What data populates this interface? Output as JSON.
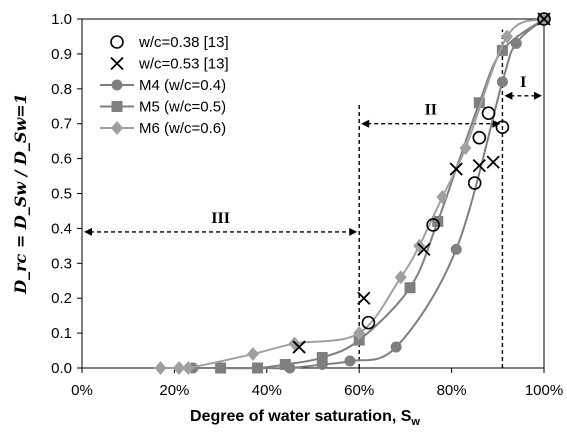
{
  "chart_data": {
    "type": "scatter",
    "xlabel": "Degree of water saturation, S",
    "xlabel_sub": "w",
    "ylabel": "D_rc = D_Sw / D_Sw=1",
    "xlim": [
      0,
      100
    ],
    "ylim": [
      0,
      1.0
    ],
    "x_ticks": [
      "0%",
      "20%",
      "40%",
      "60%",
      "80%",
      "100%"
    ],
    "x_tick_values": [
      0,
      20,
      40,
      60,
      80,
      100
    ],
    "y_ticks": [
      "0.0",
      "0.1",
      "0.2",
      "0.3",
      "0.4",
      "0.5",
      "0.6",
      "0.7",
      "0.8",
      "0.9",
      "1.0"
    ],
    "y_tick_values": [
      0,
      0.1,
      0.2,
      0.3,
      0.4,
      0.5,
      0.6,
      0.7,
      0.8,
      0.9,
      1.0
    ],
    "grid": false,
    "legend_position": "top-left",
    "series": [
      {
        "name": "w/c=0.38 [13]",
        "marker": "circle-open",
        "color": "#000000",
        "line": false,
        "x": [
          62,
          76,
          85,
          86,
          88,
          91,
          100
        ],
        "y": [
          0.13,
          0.41,
          0.53,
          0.66,
          0.73,
          0.69,
          1.0
        ]
      },
      {
        "name": "w/c=0.53 [13]",
        "marker": "x",
        "color": "#000000",
        "line": false,
        "x": [
          47,
          61,
          74,
          81,
          86,
          89,
          100
        ],
        "y": [
          0.06,
          0.2,
          0.34,
          0.57,
          0.58,
          0.59,
          1.0
        ]
      },
      {
        "name": "M4 (w/c=0.4)",
        "marker": "circle",
        "color": "#7f7f7f",
        "line": true,
        "x": [
          24,
          30,
          38,
          45,
          52,
          58,
          68,
          81,
          91,
          94,
          100
        ],
        "y": [
          0.0,
          0.0,
          0.0,
          0.0,
          0.01,
          0.02,
          0.06,
          0.34,
          0.82,
          0.93,
          1.0
        ]
      },
      {
        "name": "M5 (w/c=0.5)",
        "marker": "square",
        "color": "#7f7f7f",
        "line": true,
        "x": [
          30,
          38,
          44,
          52,
          60,
          71,
          77,
          86,
          91,
          100
        ],
        "y": [
          0.0,
          0.0,
          0.01,
          0.03,
          0.08,
          0.23,
          0.42,
          0.76,
          0.91,
          1.0
        ]
      },
      {
        "name": "M6 (w/c=0.6)",
        "marker": "diamond",
        "color": "#a0a0a0",
        "line": true,
        "x": [
          17,
          21,
          23,
          37,
          46,
          60,
          69,
          73,
          78,
          83,
          92,
          100
        ],
        "y": [
          0.0,
          0.0,
          0.0,
          0.04,
          0.07,
          0.1,
          0.26,
          0.35,
          0.49,
          0.63,
          0.95,
          1.0
        ]
      }
    ],
    "regions": [
      {
        "label": "I",
        "x_from": 91,
        "x_to": 100,
        "y": 0.78
      },
      {
        "label": "II",
        "x_from": 60,
        "x_to": 91,
        "y": 0.7
      },
      {
        "label": "III",
        "x_from": 0,
        "x_to": 60,
        "y": 0.39
      }
    ],
    "dividers": [
      {
        "x": 60,
        "y_from": 0,
        "y_to": 0.76
      },
      {
        "x": 91,
        "y_from": 0,
        "y_to": 0.97
      }
    ]
  }
}
